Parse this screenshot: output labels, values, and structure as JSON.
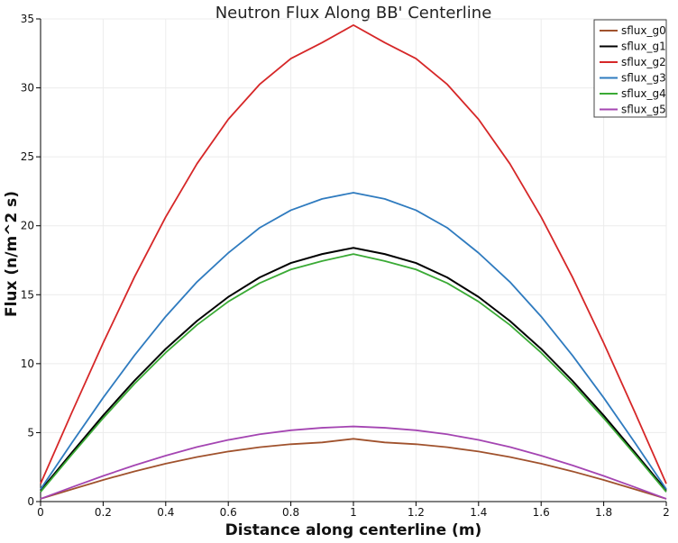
{
  "chart_data": {
    "type": "line",
    "title": "Neutron Flux Along BB' Centerline",
    "xlabel": "Distance along centerline (m)",
    "ylabel": "Flux (n/m^2 s)",
    "xlim": [
      0,
      2
    ],
    "ylim": [
      0,
      35
    ],
    "xticks": [
      0,
      0.2,
      0.4,
      0.6,
      0.8,
      1,
      1.2,
      1.4,
      1.6,
      1.8,
      2
    ],
    "yticks": [
      0,
      5,
      10,
      15,
      20,
      25,
      30,
      35
    ],
    "x_tick_labels": [
      "0",
      "0.2",
      "0.4",
      "0.6",
      "0.8",
      "1",
      "1.2",
      "1.4",
      "1.6",
      "1.8",
      "2"
    ],
    "y_tick_labels": [
      "0",
      "5",
      "10",
      "15",
      "20",
      "25",
      "30",
      "35"
    ],
    "grid": true,
    "legend_position": "top-right",
    "x": [
      0,
      0.1,
      0.2,
      0.3,
      0.4,
      0.5,
      0.6,
      0.7,
      0.8,
      0.9,
      1.0,
      1.1,
      1.2,
      1.3,
      1.4,
      1.5,
      1.6,
      1.7,
      1.8,
      1.9,
      2.0
    ],
    "series": [
      {
        "name": "sflux_g0",
        "color": "#a0522d",
        "values": [
          0.2,
          0.89,
          1.57,
          2.19,
          2.75,
          3.23,
          3.63,
          3.94,
          4.16,
          4.29,
          4.55,
          4.29,
          4.16,
          3.94,
          3.63,
          3.23,
          2.75,
          2.19,
          1.57,
          0.89,
          0.2
        ]
      },
      {
        "name": "sflux_g1",
        "color": "#000000",
        "values": [
          0.8,
          3.55,
          6.24,
          8.76,
          11.07,
          13.1,
          14.84,
          16.25,
          17.3,
          17.95,
          18.4,
          17.95,
          17.3,
          16.25,
          14.84,
          13.1,
          11.07,
          8.76,
          6.24,
          3.55,
          0.8
        ]
      },
      {
        "name": "sflux_g2",
        "color": "#d62728",
        "values": [
          1.3,
          6.46,
          11.5,
          16.28,
          20.64,
          24.5,
          27.72,
          30.25,
          32.12,
          33.28,
          34.55,
          33.28,
          32.12,
          30.25,
          27.72,
          24.5,
          20.64,
          16.28,
          11.5,
          6.46,
          1.3
        ]
      },
      {
        "name": "sflux_g3",
        "color": "#2f7bbf",
        "values": [
          0.9,
          4.26,
          7.53,
          10.6,
          13.42,
          15.93,
          18.03,
          19.85,
          21.13,
          21.95,
          22.4,
          21.95,
          21.13,
          19.85,
          18.03,
          15.93,
          13.42,
          10.6,
          7.53,
          4.26,
          0.9
        ]
      },
      {
        "name": "sflux_g4",
        "color": "#3aaa35",
        "values": [
          0.7,
          3.41,
          6.05,
          8.54,
          10.8,
          12.81,
          14.5,
          15.84,
          16.83,
          17.44,
          17.95,
          17.44,
          16.83,
          15.84,
          14.5,
          12.81,
          10.8,
          8.54,
          6.05,
          3.41,
          0.7
        ]
      },
      {
        "name": "sflux_g5",
        "color": "#a445b2",
        "values": [
          0.2,
          1.04,
          1.86,
          2.63,
          3.33,
          3.96,
          4.47,
          4.88,
          5.17,
          5.35,
          5.45,
          5.35,
          5.17,
          4.88,
          4.47,
          3.96,
          3.33,
          2.63,
          1.86,
          1.04,
          0.2
        ]
      }
    ]
  }
}
